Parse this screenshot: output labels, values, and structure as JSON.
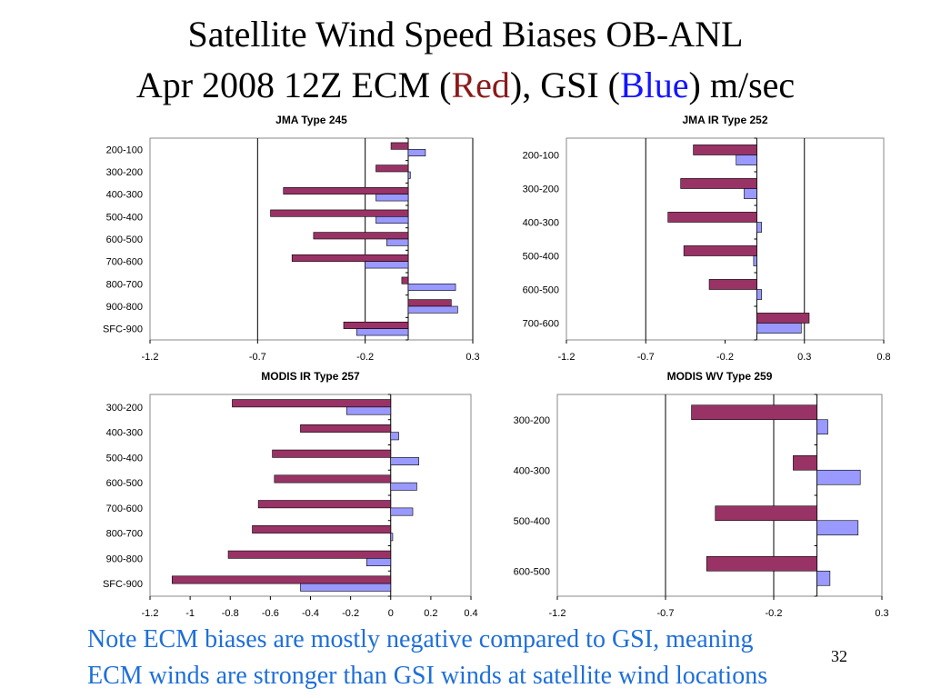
{
  "slide": {
    "title_line1": "Satellite Wind Speed Biases OB-ANL",
    "title_line2": {
      "prefix": "Apr 2008 12Z ECM (",
      "red_word": "Red",
      "middle": "), GSI (",
      "blue_word": "Blue",
      "suffix": ") m/sec"
    },
    "note_line1": "Note ECM biases are mostly negative compared to GSI, meaning",
    "note_line2": "ECM winds are stronger than GSI winds at satellite wind locations",
    "page_number": "32"
  },
  "colors": {
    "ecm": "#993366",
    "gsi": "#9999ff",
    "title_red": "#8b1a1a",
    "title_blue": "#1414ff",
    "note": "#1e6fd9"
  },
  "chart_data": [
    {
      "type": "bar",
      "orientation": "horizontal",
      "title": "JMA Type 245",
      "categories": [
        "200-100",
        "300-200",
        "400-300",
        "500-400",
        "600-500",
        "700-600",
        "800-700",
        "900-800",
        "SFC-900"
      ],
      "series": [
        {
          "key": "ecm",
          "values": [
            -0.08,
            -0.15,
            -0.58,
            -0.64,
            -0.44,
            -0.54,
            -0.03,
            0.2,
            -0.3
          ]
        },
        {
          "key": "gsi",
          "values": [
            0.08,
            0.01,
            -0.15,
            -0.15,
            -0.1,
            -0.2,
            0.22,
            0.23,
            -0.24
          ]
        }
      ],
      "xlim": [
        -1.2,
        0.3
      ],
      "xticks": [
        -1.2,
        -0.7,
        -0.2,
        0.3
      ],
      "gridlines": [
        -0.7,
        -0.2,
        0.3
      ],
      "ylabel": "",
      "xlabel": ""
    },
    {
      "type": "bar",
      "orientation": "horizontal",
      "title": "JMA IR Type 252",
      "categories": [
        "200-100",
        "300-200",
        "400-300",
        "500-400",
        "600-500",
        "700-600"
      ],
      "series": [
        {
          "key": "ecm",
          "values": [
            -0.4,
            -0.48,
            -0.56,
            -0.46,
            -0.3,
            0.33
          ]
        },
        {
          "key": "gsi",
          "values": [
            -0.13,
            -0.08,
            0.03,
            -0.02,
            0.03,
            0.28
          ]
        }
      ],
      "xlim": [
        -1.2,
        0.8
      ],
      "xticks": [
        -1.2,
        -0.7,
        -0.2,
        0.3,
        0.8
      ],
      "gridlines": [
        -0.7,
        0.3
      ],
      "ylabel": "",
      "xlabel": ""
    },
    {
      "type": "bar",
      "orientation": "horizontal",
      "title": "MODIS IR Type 257",
      "categories": [
        "300-200",
        "400-300",
        "500-400",
        "600-500",
        "700-600",
        "800-700",
        "900-800",
        "SFC-900"
      ],
      "series": [
        {
          "key": "ecm",
          "values": [
            -0.79,
            -0.45,
            -0.59,
            -0.58,
            -0.66,
            -0.69,
            -0.81,
            -1.09
          ]
        },
        {
          "key": "gsi",
          "values": [
            -0.22,
            0.04,
            0.14,
            0.13,
            0.11,
            0.01,
            -0.12,
            -0.45
          ]
        }
      ],
      "xlim": [
        -1.2,
        0.4
      ],
      "xticks": [
        -1.2,
        -1,
        -0.8,
        -0.6,
        -0.4,
        -0.2,
        0,
        0.2,
        0.4
      ],
      "gridlines": [],
      "ylabel": "",
      "xlabel": ""
    },
    {
      "type": "bar",
      "orientation": "horizontal",
      "title": "MODIS WV Type 259",
      "categories": [
        "300-200",
        "400-300",
        "500-400",
        "600-500"
      ],
      "series": [
        {
          "key": "ecm",
          "values": [
            -0.58,
            -0.11,
            -0.47,
            -0.51
          ]
        },
        {
          "key": "gsi",
          "values": [
            0.05,
            0.2,
            0.19,
            0.06
          ]
        }
      ],
      "xlim": [
        -1.2,
        0.3
      ],
      "xticks": [
        -1.2,
        -0.7,
        -0.2,
        0.3
      ],
      "gridlines": [
        -0.7,
        -0.2
      ],
      "ylabel": "",
      "xlabel": ""
    }
  ]
}
